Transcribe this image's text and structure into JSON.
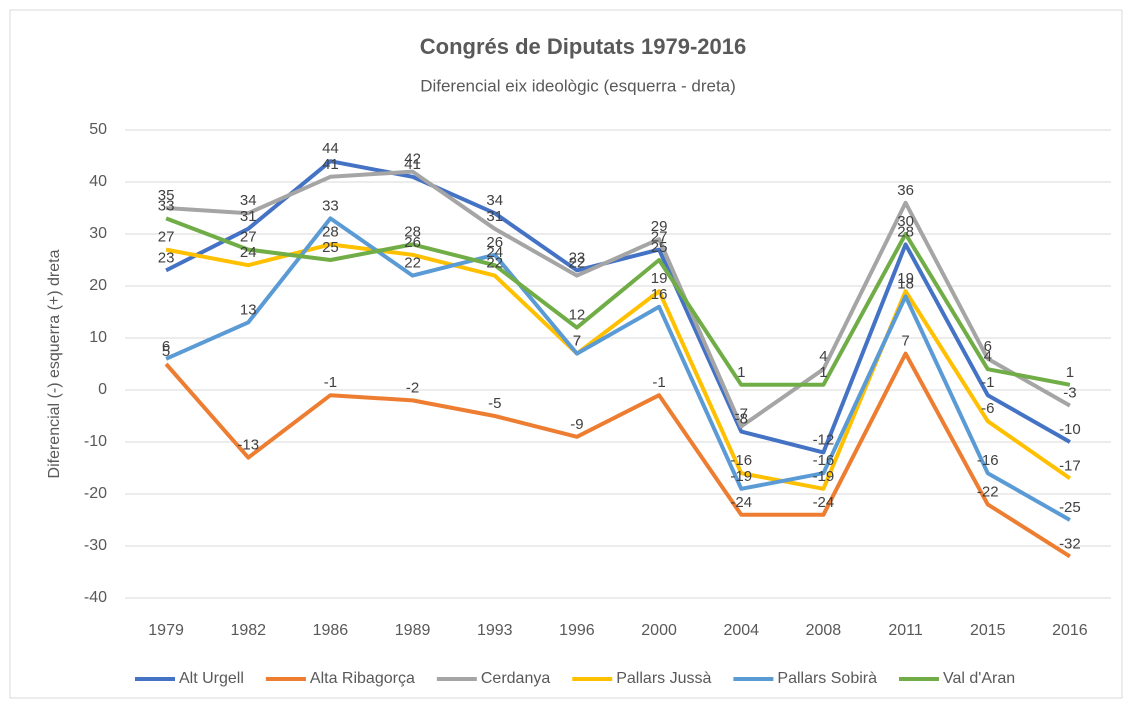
{
  "chart_data": {
    "type": "line",
    "title": "Congrés de Diputats 1979-2016",
    "subtitle": "Diferencial eix ideològic (esquerra - dreta)",
    "y_label": "Diferencial (-) esquerra (+) dreta",
    "categories": [
      "1979",
      "1982",
      "1986",
      "1989",
      "1993",
      "1996",
      "2000",
      "2004",
      "2008",
      "2011",
      "2015",
      "2016"
    ],
    "series": [
      {
        "name": "Alt Urgell",
        "color": "#4472c4",
        "values": [
          23,
          31,
          44,
          41,
          34,
          23,
          27,
          -8,
          -12,
          28,
          -1,
          -10
        ]
      },
      {
        "name": "Alta Ribagorça",
        "color": "#ed7d31",
        "values": [
          5,
          -13,
          -1,
          -2,
          -5,
          -9,
          -1,
          -24,
          -24,
          7,
          -22,
          -32
        ]
      },
      {
        "name": "Cerdanya",
        "color": "#a5a5a5",
        "values": [
          35,
          34,
          41,
          42,
          31,
          22,
          29,
          -7,
          4,
          36,
          6,
          -3
        ]
      },
      {
        "name": "Pallars Jussà",
        "color": "#ffc000",
        "values": [
          27,
          24,
          28,
          26,
          22,
          7,
          19,
          -16,
          -19,
          19,
          -6,
          -17
        ]
      },
      {
        "name": "Pallars Sobirà",
        "color": "#5b9bd5",
        "values": [
          6,
          13,
          33,
          22,
          26,
          7,
          16,
          -19,
          -16,
          18,
          -16,
          -25
        ]
      },
      {
        "name": "Val d'Aran",
        "color": "#70ad47",
        "values": [
          33,
          27,
          25,
          28,
          24,
          12,
          25,
          1,
          1,
          30,
          4,
          1
        ]
      }
    ],
    "ylim": [
      -40,
      50
    ],
    "yticks": [
      -40,
      -30,
      -20,
      -10,
      0,
      10,
      20,
      30,
      40,
      50
    ],
    "grid": true,
    "legend": "bottom"
  }
}
